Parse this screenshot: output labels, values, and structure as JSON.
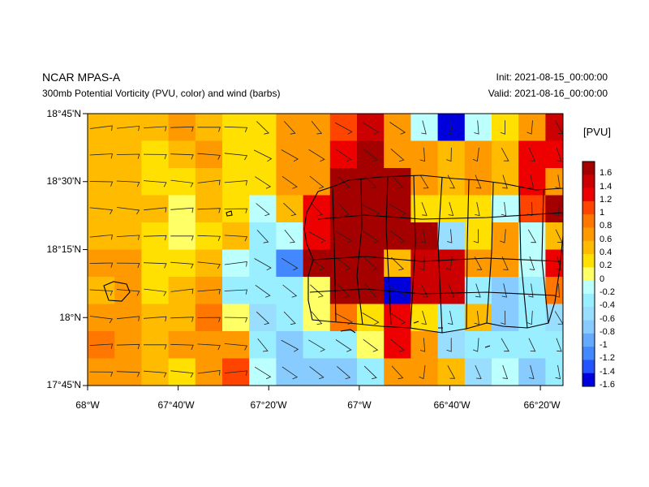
{
  "header": {
    "left_title": "NCAR MPAS-A",
    "left_subtitle": "300mb Potential Vorticity (PVU, color) and wind (barbs)",
    "right_init": "Init: 2021-08-15_00:00:00",
    "right_valid": "Valid: 2021-08-16_00:00:00"
  },
  "colorbar": {
    "units_label": "[PVU]",
    "tick_labels": [
      "1.6",
      "1.4",
      "1.2",
      "1",
      "0.8",
      "0.6",
      "0.4",
      "0.2",
      "0",
      "-0.2",
      "-0.4",
      "-0.6",
      "-0.8",
      "-1",
      "-1.2",
      "-1.4",
      "-1.6"
    ],
    "colors_top_to_bottom": [
      "#a50000",
      "#cc0000",
      "#ee0000",
      "#ff4400",
      "#ff7700",
      "#ff9900",
      "#ffbb00",
      "#ffe000",
      "#ffff66",
      "#bbffff",
      "#99eeff",
      "#99ddff",
      "#88ccff",
      "#66aaff",
      "#4488ff",
      "#2255ff",
      "#0000dd"
    ]
  },
  "axes": {
    "lat_labels": [
      "18°45'N",
      "18°30'N",
      "18°15'N",
      "18°N",
      "17°45'N"
    ],
    "lon_labels": [
      "68°W",
      "67°40'W",
      "67°20'W",
      "67°W",
      "66°40'W",
      "66°20'W"
    ]
  },
  "chart_data": {
    "type": "heatmap",
    "title": "300mb Potential Vorticity (PVU, color) and wind (barbs)",
    "units": "PVU",
    "lon_range_deg_west": [
      68.0,
      66.25
    ],
    "lat_range_deg_north": [
      17.75,
      18.75
    ],
    "grid_rows_north_to_south": [
      [
        0.4,
        0.4,
        0.4,
        0.6,
        0.4,
        0.2,
        0.2,
        0.6,
        0.6,
        1.0,
        1.4,
        0.6,
        -0.2,
        -1.6,
        -0.2,
        0.2,
        0.6,
        1.4
      ],
      [
        0.4,
        0.4,
        0.2,
        0.4,
        0.6,
        0.2,
        0.2,
        0.6,
        0.6,
        1.2,
        1.6,
        0.6,
        0.6,
        0.4,
        0.6,
        0.4,
        1.2,
        1.2
      ],
      [
        0.4,
        0.4,
        0.2,
        0.2,
        0.4,
        0.2,
        0.2,
        0.6,
        0.6,
        1.6,
        1.6,
        1.6,
        0.6,
        0.4,
        0.6,
        0.4,
        1.2,
        0.6
      ],
      [
        0.4,
        0.4,
        0.4,
        0.0,
        0.4,
        0.2,
        -0.2,
        0.4,
        1.2,
        1.6,
        1.6,
        1.6,
        0.2,
        0.2,
        0.2,
        -0.2,
        1.0,
        1.6
      ],
      [
        0.4,
        0.4,
        0.2,
        0.0,
        0.2,
        0.4,
        -0.4,
        -0.2,
        1.2,
        1.6,
        1.6,
        1.6,
        1.6,
        -0.6,
        0.2,
        0.6,
        -0.2,
        0.4
      ],
      [
        0.6,
        0.6,
        0.2,
        0.2,
        0.4,
        -0.2,
        -0.4,
        -1.2,
        1.6,
        1.6,
        1.6,
        0.4,
        1.4,
        1.4,
        0.6,
        0.6,
        -0.2,
        1.2
      ],
      [
        0.4,
        0.6,
        0.2,
        0.4,
        0.6,
        -0.4,
        -0.4,
        -0.4,
        0.0,
        1.6,
        1.6,
        -1.6,
        1.4,
        1.4,
        -0.4,
        -0.8,
        -0.4,
        0.8
      ],
      [
        0.6,
        0.6,
        0.4,
        0.4,
        0.8,
        0.0,
        -0.6,
        -0.4,
        0.0,
        0.8,
        0.2,
        1.2,
        0.2,
        -0.4,
        0.4,
        -0.8,
        -0.4,
        -0.6
      ],
      [
        0.8,
        0.6,
        0.4,
        0.6,
        0.6,
        0.6,
        -0.4,
        -0.8,
        -0.4,
        -0.4,
        0.0,
        1.2,
        0.6,
        -0.6,
        -0.4,
        -0.4,
        -0.4,
        -0.4
      ],
      [
        0.6,
        0.6,
        0.4,
        0.2,
        0.6,
        1.0,
        -0.2,
        -0.8,
        -0.8,
        -0.8,
        -0.4,
        0.6,
        0.6,
        0.4,
        -0.6,
        -0.2,
        -0.8,
        -0.4
      ],
      [
        0.6,
        0.4,
        0.4,
        0.2,
        0.4,
        1.0,
        0.6,
        -0.2,
        -1.2,
        -0.4,
        -0.2,
        0.6,
        1.6,
        1.6,
        0.8,
        -0.2,
        -0.4,
        -0.4
      ],
      [
        0.2,
        0.4,
        0.4,
        0.4,
        0.4,
        0.6,
        1.4,
        0.6,
        -0.4,
        -1.6,
        -0.2,
        1.6,
        1.6,
        1.4,
        0.6,
        0.8,
        0.6,
        0.2
      ]
    ]
  }
}
